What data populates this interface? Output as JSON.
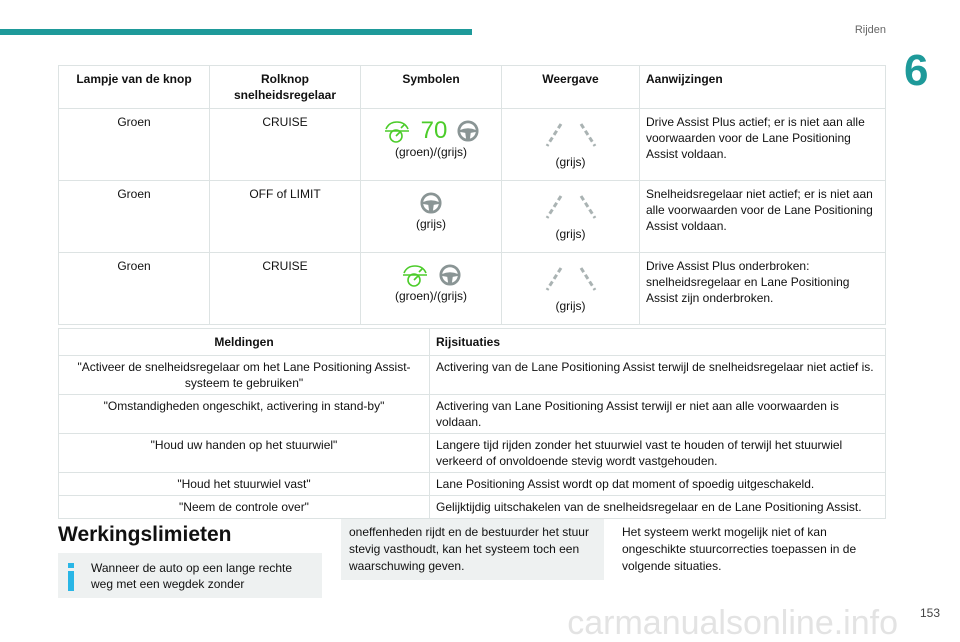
{
  "header": {
    "section": "Rijden",
    "chapter": "6"
  },
  "table1": {
    "headers": [
      "Lampje van de knop",
      "Rolknop snelheidsregelaar",
      "Symbolen",
      "Weergave",
      "Aanwijzingen"
    ],
    "rows": [
      {
        "lamp": "Groen",
        "knob": "CRUISE",
        "speed": "70",
        "sym_caption": "(groen)/(grijs)",
        "view_caption": "(grijs)",
        "note": "Drive Assist Plus actief; er is niet aan alle voorwaarden voor de Lane Positioning Assist voldaan."
      },
      {
        "lamp": "Groen",
        "knob": "OFF of LIMIT",
        "sym_caption": "(grijs)",
        "view_caption": "(grijs)",
        "note": "Snelheidsregelaar niet actief; er is niet aan alle voorwaarden voor de Lane Positioning Assist voldaan."
      },
      {
        "lamp": "Groen",
        "knob": "CRUISE",
        "sym_caption": "(groen)/(grijs)",
        "view_caption": "(grijs)",
        "note": "Drive Assist Plus onderbroken: snelheidsregelaar en Lane Positioning Assist zijn onderbroken."
      }
    ]
  },
  "table2": {
    "headers": [
      "Meldingen",
      "Rijsituaties"
    ],
    "rows": [
      [
        "\"Activeer de snelheidsregelaar om het Lane Positioning Assist-systeem te gebruiken\"",
        "Activering van de Lane Positioning Assist terwijl de snelheidsregelaar niet actief is."
      ],
      [
        "\"Omstandigheden ongeschikt, activering in stand-by\"",
        "Activering van Lane Positioning Assist terwijl er niet aan alle voorwaarden is voldaan."
      ],
      [
        "\"Houd uw handen op het stuurwiel\"",
        "Langere tijd rijden zonder het stuurwiel vast te houden of terwijl het stuurwiel verkeerd of onvoldoende stevig wordt vastgehouden."
      ],
      [
        "\"Houd het stuurwiel vast\"",
        "Lane Positioning Assist wordt op dat moment of spoedig uitgeschakeld."
      ],
      [
        "\"Neem de controle over\"",
        "Gelijktijdig uitschakelen van de snelheidsregelaar en de Lane Positioning Assist."
      ]
    ]
  },
  "section": {
    "title": "Werkingslimieten",
    "info": "Wanneer de auto op een lange rechte weg met een wegdek zonder",
    "middle": "oneffenheden rijdt en de bestuurder het stuur stevig vasthoudt, kan het systeem toch een waarschuwing geven.",
    "right": "Het systeem werkt mogelijk niet of kan ongeschikte stuurcorrecties toepassen in de volgende situaties."
  },
  "page_number": "153",
  "watermark": "carmanualsonline.info",
  "colors": {
    "accent": "#1e9a9a",
    "green": "#4ccc2a",
    "grey": "#8a9595",
    "info": "#29b6e6"
  }
}
